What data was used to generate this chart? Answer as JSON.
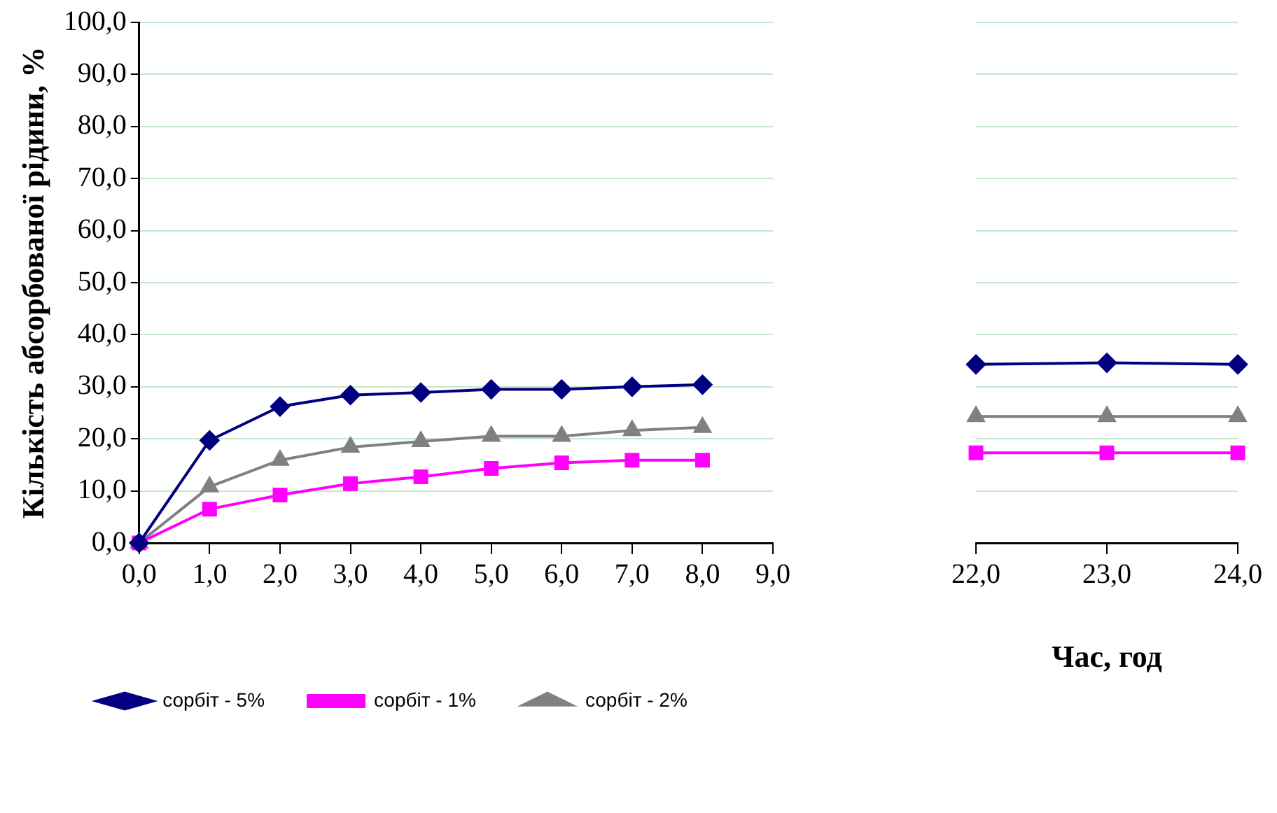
{
  "chart_data": [
    {
      "type": "line",
      "ylabel": "Кількість абсорбованої рідини, %",
      "x": [
        0,
        1,
        2,
        3,
        4,
        5,
        6,
        7,
        8
      ],
      "xlim": [
        0,
        9
      ],
      "xticks": [
        {
          "value": 0,
          "label": "0,0"
        },
        {
          "value": 1,
          "label": "1,0"
        },
        {
          "value": 2,
          "label": "2,0"
        },
        {
          "value": 3,
          "label": "3,0"
        },
        {
          "value": 4,
          "label": "4,0"
        },
        {
          "value": 5,
          "label": "5,0"
        },
        {
          "value": 6,
          "label": "6,0"
        },
        {
          "value": 7,
          "label": "7,0"
        },
        {
          "value": 8,
          "label": "8,0"
        },
        {
          "value": 9,
          "label": "9,0"
        }
      ],
      "ylim": [
        0,
        100
      ],
      "yticks": [
        {
          "value": 0,
          "label": "0,0"
        },
        {
          "value": 10,
          "label": "10,0"
        },
        {
          "value": 20,
          "label": "20,0"
        },
        {
          "value": 30,
          "label": "30,0"
        },
        {
          "value": 40,
          "label": "40,0"
        },
        {
          "value": 50,
          "label": "50,0"
        },
        {
          "value": 60,
          "label": "60,0"
        },
        {
          "value": 70,
          "label": "70,0"
        },
        {
          "value": 80,
          "label": "80,0"
        },
        {
          "value": 90,
          "label": "90,0"
        },
        {
          "value": 100,
          "label": "100,0"
        }
      ],
      "grid": "y",
      "legend": "bottom",
      "series": [
        {
          "name": "сорбіт - 5%",
          "color": "#000080",
          "marker": "diamond",
          "values": [
            0,
            19.7,
            26.2,
            28.4,
            28.9,
            29.5,
            29.5,
            30.0,
            30.4
          ]
        },
        {
          "name": "сорбіт - 1%",
          "color": "#ff00ff",
          "marker": "square",
          "values": [
            0,
            6.5,
            9.2,
            11.4,
            12.7,
            14.3,
            15.4,
            15.9,
            15.9
          ]
        },
        {
          "name": "сорбіт - 2%",
          "color": "#808080",
          "marker": "triangle",
          "values": [
            0,
            10.8,
            15.9,
            18.4,
            19.5,
            20.5,
            20.5,
            21.6,
            22.2
          ]
        }
      ]
    },
    {
      "type": "line",
      "xlabel": "Час, год",
      "x": [
        22,
        23,
        24
      ],
      "xlim": [
        22,
        24
      ],
      "xticks": [
        {
          "value": 22,
          "label": "22,0"
        },
        {
          "value": 23,
          "label": "23,0"
        },
        {
          "value": 24,
          "label": "24,0"
        }
      ],
      "ylim": [
        0,
        100
      ],
      "yticks": [
        {
          "value": 0,
          "label": null
        },
        {
          "value": 10,
          "label": null
        },
        {
          "value": 20,
          "label": null
        },
        {
          "value": 30,
          "label": null
        },
        {
          "value": 40,
          "label": null
        },
        {
          "value": 50,
          "label": null
        },
        {
          "value": 60,
          "label": null
        },
        {
          "value": 70,
          "label": null
        },
        {
          "value": 80,
          "label": null
        },
        {
          "value": 90,
          "label": null
        },
        {
          "value": 100,
          "label": null
        }
      ],
      "grid": "y",
      "tick_labels": "x",
      "series": [
        {
          "color": "#000080",
          "marker": "diamond",
          "values": [
            34.3,
            34.6,
            34.3
          ]
        },
        {
          "color": "#ff00ff",
          "marker": "square",
          "values": [
            17.3,
            17.3,
            17.3
          ]
        },
        {
          "color": "#808080",
          "marker": "triangle",
          "values": [
            24.3,
            24.3,
            24.3
          ]
        }
      ]
    }
  ]
}
